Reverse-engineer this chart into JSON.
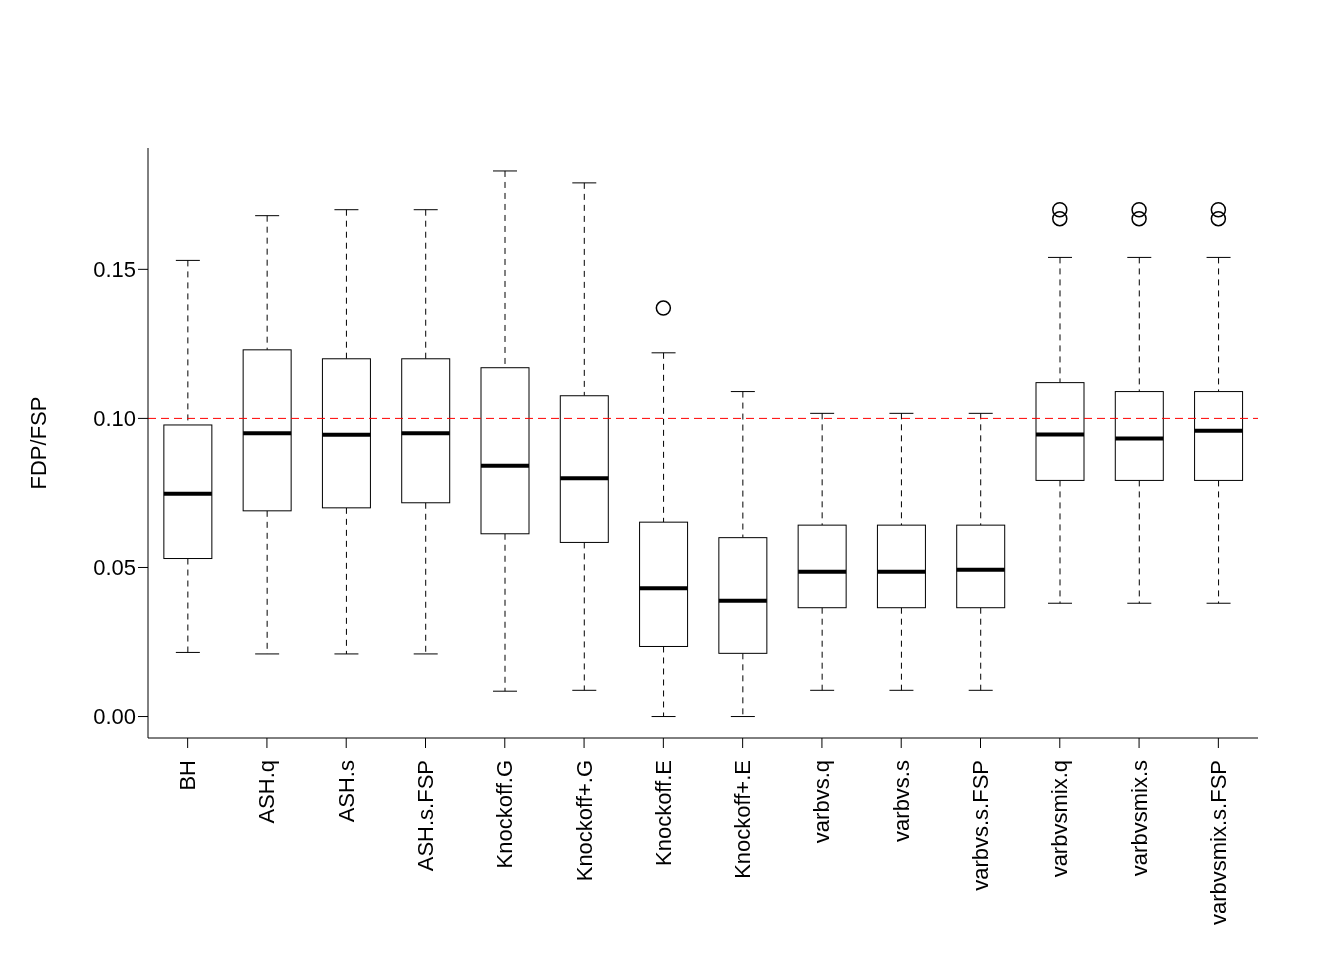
{
  "chart_data": {
    "type": "box",
    "ylabel": "FDP/FSP",
    "categories": [
      "BH",
      "ASH.q",
      "ASH.s",
      "ASH.s.FSP",
      "Knockoff.G",
      "Knockoff+.G",
      "Knockoff.E",
      "Knockoff+.E",
      "varbvs.q",
      "varbvs.s",
      "varbvs.s.FSP",
      "varbvsmix.q",
      "varbvsmix.s",
      "varbvsmix.s.FSP"
    ],
    "boxes": [
      {
        "low": 0.0215,
        "q1": 0.053,
        "median": 0.0747,
        "q3": 0.0978,
        "high": 0.153
      },
      {
        "low": 0.021,
        "q1": 0.069,
        "median": 0.095,
        "q3": 0.123,
        "high": 0.168
      },
      {
        "low": 0.021,
        "q1": 0.07,
        "median": 0.0945,
        "q3": 0.12,
        "high": 0.17
      },
      {
        "low": 0.021,
        "q1": 0.0717,
        "median": 0.095,
        "q3": 0.12,
        "high": 0.17
      },
      {
        "low": 0.0085,
        "q1": 0.0613,
        "median": 0.0841,
        "q3": 0.117,
        "high": 0.183
      },
      {
        "low": 0.0088,
        "q1": 0.0584,
        "median": 0.0799,
        "q3": 0.1076,
        "high": 0.179
      },
      {
        "low": 0,
        "q1": 0.0235,
        "median": 0.043,
        "q3": 0.0652,
        "high": 0.122,
        "outliers": [
          0.137
        ]
      },
      {
        "low": 0,
        "q1": 0.0212,
        "median": 0.0388,
        "q3": 0.06,
        "high": 0.109
      },
      {
        "low": 0.0088,
        "q1": 0.0365,
        "median": 0.0486,
        "q3": 0.0642,
        "high": 0.1017
      },
      {
        "low": 0.0088,
        "q1": 0.0365,
        "median": 0.0486,
        "q3": 0.0642,
        "high": 0.1017
      },
      {
        "low": 0.0088,
        "q1": 0.0365,
        "median": 0.0492,
        "q3": 0.0642,
        "high": 0.1017
      },
      {
        "low": 0.038,
        "q1": 0.0792,
        "median": 0.0946,
        "q3": 0.112,
        "high": 0.154,
        "outliers": [
          0.167,
          0.17
        ]
      },
      {
        "low": 0.038,
        "q1": 0.0792,
        "median": 0.0933,
        "q3": 0.109,
        "high": 0.154,
        "outliers": [
          0.167,
          0.17
        ]
      },
      {
        "low": 0.038,
        "q1": 0.0792,
        "median": 0.0959,
        "q3": 0.109,
        "high": 0.154,
        "outliers": [
          0.167,
          0.17
        ]
      }
    ],
    "ylim": [
      -0.0072,
      0.1907
    ],
    "yticks": [
      {
        "value": 0,
        "label": "0.00"
      },
      0.05,
      {
        "value": 0.1,
        "label": "0.10"
      },
      {
        "value": 0.15,
        "label": "0.15"
      }
    ],
    "ref_lines": [
      {
        "axis": "y",
        "value": 0.1,
        "color": "#ff0000",
        "line_style": "dashed"
      }
    ]
  }
}
